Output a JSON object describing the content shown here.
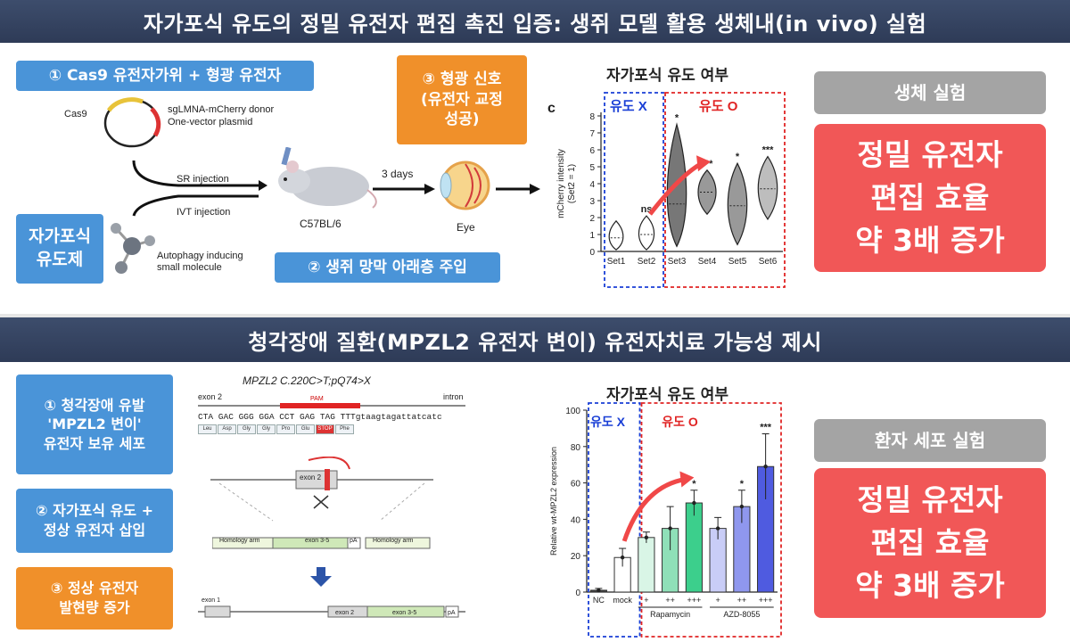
{
  "top": {
    "banner": "자가포식 유도의 정밀 유전자 편집 촉진 입증: 생쥐 모델 활용 생체내(in vivo) 실험",
    "step1": "① Cas9 유전자가위 + 형광 유전자",
    "inducer": "자가포식\n유도제",
    "step2": "② 생쥐 망막 아래층 주입",
    "step3": "③ 형광 신호\n(유전자 교정\n성공)",
    "plasmid_cas9": "Cas9",
    "plasmid_desc": "sgLMNA-mCherry donor\nOne-vector plasmid",
    "sr_injection": "SR injection",
    "ivt_injection": "IVT injection",
    "molecule_label": "Autophagy inducing\nsmall molecule",
    "mouse_label": "C57BL/6",
    "days_label": "3 days",
    "eye_label": "Eye",
    "side_box": "생체 실험",
    "result": "정밀 유전자\n편집 효율\n약 3배 증가"
  },
  "bottom": {
    "banner": "청각장애 질환(MPZL2 유전자 변이) 유전자치료 가능성 제시",
    "step1": "① 청각장애 유발\n'MPZL2 변이'\n유전자 보유 세포",
    "step2": "② 자가포식 유도 +\n정상 유전자 삽입",
    "step3": "③ 정상 유전자\n발현량 증가",
    "mutation": "MPZL2 C.220C>T;pQ74>X",
    "exon2": "exon 2",
    "intron": "intron",
    "pam": "PAM",
    "sequence": "CTA GAC GGG GGA CCT GAG TAG TTTgtaagtagattatcatc",
    "amino_acids": [
      "Leu",
      "Asp",
      "Gly",
      "Gly",
      "Pro",
      "Glu",
      "STOP",
      "Phe"
    ],
    "locus_exon2": "exon 2",
    "homology_arm_left": "Homology arm",
    "homology_arm_right": "Homology arm",
    "donor_exon": "exon 3-5",
    "donor_pa": "pA",
    "final_exon1": "exon 1",
    "final_exon2": "exon 2",
    "final_exon35": "exon 3-5",
    "final_pa": "pA",
    "side_box": "환자 세포 실험",
    "result": "정밀 유전자\n편집 효율\n약 3배 증가"
  },
  "chart_data": [
    {
      "type": "violin",
      "title": "자가포식 유도 여부",
      "ylabel": "mCherry intensity\n(Set2 = 1)",
      "panel_letter": "c",
      "ylim": [
        0,
        8
      ],
      "yticks": [
        0,
        1,
        2,
        3,
        4,
        5,
        6,
        7,
        8
      ],
      "categories": [
        "Set1",
        "Set2",
        "Set3",
        "Set4",
        "Set5",
        "Set6"
      ],
      "medians": [
        0.8,
        1.0,
        2.8,
        3.5,
        2.7,
        3.7
      ],
      "spreads": [
        [
          0.1,
          1.8
        ],
        [
          0.1,
          2.1
        ],
        [
          0.3,
          7.5
        ],
        [
          2.2,
          4.8
        ],
        [
          0.4,
          5.2
        ],
        [
          1.9,
          5.6
        ]
      ],
      "significance": [
        "",
        "ns",
        "*",
        "***",
        "*",
        "***"
      ],
      "groups": [
        {
          "label": "유도 X",
          "categories": [
            "Set1",
            "Set2"
          ],
          "color": "#1a3fd6"
        },
        {
          "label": "유도 O",
          "categories": [
            "Set3",
            "Set4",
            "Set5",
            "Set6"
          ],
          "color": "#e02424"
        }
      ]
    },
    {
      "type": "bar",
      "title": "자가포식 유도 여부",
      "ylabel": "Relative wt-MPZL2 expression",
      "ylim": [
        0,
        100
      ],
      "yticks": [
        0,
        20,
        40,
        60,
        80,
        100
      ],
      "categories": [
        "NC",
        "mock",
        "+",
        "++",
        "+++",
        "+",
        "++",
        "+++"
      ],
      "values": [
        1,
        19,
        30,
        35,
        49,
        35,
        47,
        69
      ],
      "errors": [
        1,
        5,
        3,
        12,
        7,
        6,
        9,
        18
      ],
      "significance": [
        "",
        "",
        "",
        "",
        "*",
        "",
        "*",
        "***"
      ],
      "treatments": [
        "Rapamycin",
        "AZD-8055"
      ],
      "groups": [
        {
          "label": "유도 X",
          "categories": [
            "NC",
            "mock"
          ],
          "color": "#1a3fd6"
        },
        {
          "label": "유도 O",
          "categories": [
            "+",
            "++",
            "+++",
            "+",
            "++",
            "+++"
          ],
          "color": "#e02424"
        }
      ],
      "colors": [
        "#444444",
        "#ffffff",
        "#d9f5e6",
        "#8fe0b8",
        "#3ccf8c",
        "#c9cdf7",
        "#8f97ee",
        "#4f5be0"
      ]
    }
  ]
}
